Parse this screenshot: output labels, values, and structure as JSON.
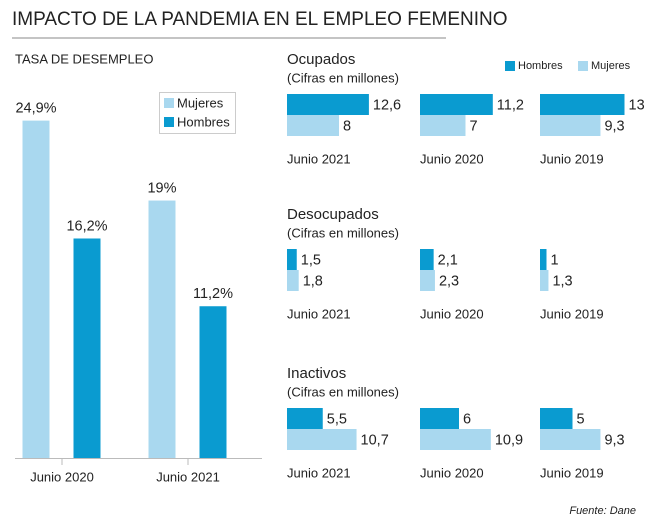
{
  "title": "IMPACTO DE LA PANDEMIA EN EL EMPLEO FEMENINO",
  "source": "Fuente: Dane",
  "chart_data": [
    {
      "type": "bar",
      "title": "TASA DE DESEMPLEO",
      "categories": [
        "Junio 2020",
        "Junio 2021"
      ],
      "series": [
        {
          "name": "Mujeres",
          "color": "#a9d8ef",
          "values": [
            24.9,
            19
          ],
          "value_labels": [
            "24,9%",
            "19%"
          ]
        },
        {
          "name": "Hombres",
          "color": "#0a9bd0",
          "values": [
            16.2,
            11.2
          ],
          "value_labels": [
            "16,2%",
            "11,2%"
          ]
        }
      ],
      "legend": "upper right"
    },
    {
      "type": "hbar",
      "title": "Ocupados",
      "subtitle": "(Cifras en millones)",
      "categories": [
        "Junio 2021",
        "Junio 2020",
        "Junio 2019"
      ],
      "series": [
        {
          "name": "Hombres",
          "color": "#0a9bd0",
          "values": [
            12.6,
            11.2,
            13
          ],
          "value_labels": [
            "12,6",
            "11,2",
            "13"
          ]
        },
        {
          "name": "Mujeres",
          "color": "#a9d8ef",
          "values": [
            8,
            7,
            9.3
          ],
          "value_labels": [
            "8",
            "7",
            "9,3"
          ]
        }
      ],
      "legend": "upper right"
    },
    {
      "type": "hbar",
      "title": "Desocupados",
      "subtitle": "(Cifras en millones)",
      "categories": [
        "Junio 2021",
        "Junio 2020",
        "Junio 2019"
      ],
      "series": [
        {
          "color": "#0a9bd0",
          "values": [
            1.5,
            2.1,
            1
          ],
          "value_labels": [
            "1,5",
            "2,1",
            "1"
          ]
        },
        {
          "color": "#a9d8ef",
          "values": [
            1.8,
            2.3,
            1.3
          ],
          "value_labels": [
            "1,8",
            "2,3",
            "1,3"
          ]
        }
      ]
    },
    {
      "type": "hbar",
      "title": "Inactivos",
      "subtitle": "(Cifras en millones)",
      "categories": [
        "Junio 2021",
        "Junio 2020",
        "Junio 2019"
      ],
      "series": [
        {
          "color": "#0a9bd0",
          "values": [
            5.5,
            6,
            5
          ],
          "value_labels": [
            "5,5",
            "6",
            "5"
          ]
        },
        {
          "color": "#a9d8ef",
          "values": [
            10.7,
            10.9,
            9.3
          ],
          "value_labels": [
            "10,7",
            "10,9",
            "9,3"
          ]
        }
      ]
    }
  ]
}
